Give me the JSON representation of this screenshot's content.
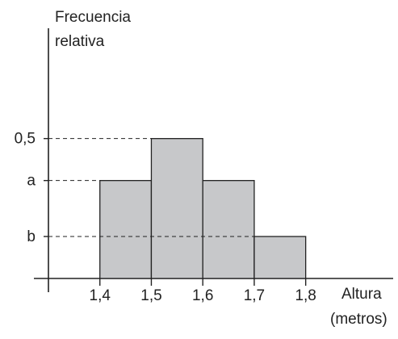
{
  "chart_data": {
    "type": "bar",
    "chart_kind": "histogram",
    "ylabel_line1": "Frecuencia",
    "ylabel_line2": "relativa",
    "xlabel_line1": "Altura",
    "xlabel_line2": "(metros)",
    "bins": [
      {
        "from": 1.4,
        "to": 1.5,
        "value": 0.35,
        "symbol": "a"
      },
      {
        "from": 1.5,
        "to": 1.6,
        "value": 0.5,
        "symbol": "0,5"
      },
      {
        "from": 1.6,
        "to": 1.7,
        "value": 0.35,
        "symbol": "a"
      },
      {
        "from": 1.7,
        "to": 1.8,
        "value": 0.15,
        "symbol": "b"
      }
    ],
    "x_ticks": [
      "1,4",
      "1,5",
      "1,6",
      "1,7",
      "1,8"
    ],
    "x_tick_values": [
      1.4,
      1.5,
      1.6,
      1.7,
      1.8
    ],
    "y_tick_labels": [
      {
        "label": "0,5",
        "value": 0.5
      },
      {
        "label": "a",
        "value": 0.35
      },
      {
        "label": "b",
        "value": 0.15
      }
    ],
    "xlim": [
      1.3,
      1.97
    ],
    "ylim": [
      0,
      0.9
    ],
    "grid": false,
    "bar_fill": "#c7c8ca",
    "bar_stroke": "#222222",
    "axis_color": "#222222"
  }
}
